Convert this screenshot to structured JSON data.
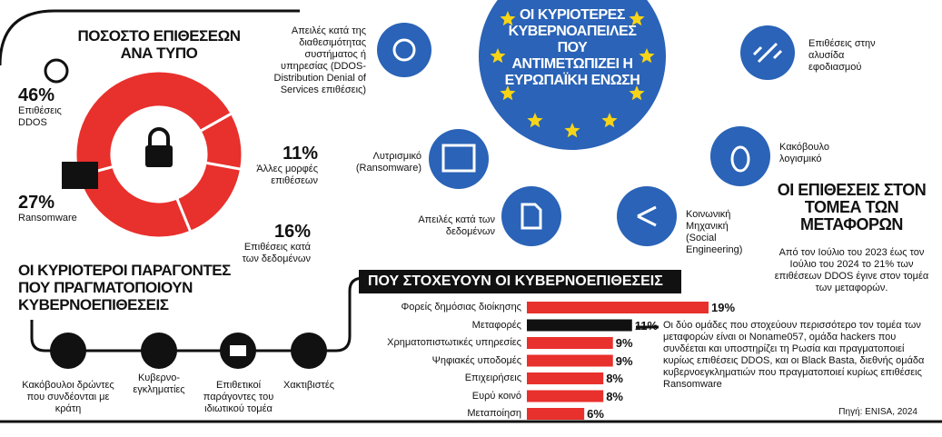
{
  "chart_data": [
    {
      "type": "donut",
      "title": "ΠΟΣΟΣΤΟ ΕΠΙΘΕΣΕΩΝ ΑΝΑ ΤΥΠΟ",
      "categories": [
        "Επιθέσεις DDOS",
        "Άλλες μορφές επιθέσεων",
        "Επιθέσεις κατά των δεδομένων",
        "Ransomware"
      ],
      "values": [
        46,
        11,
        16,
        27
      ],
      "value_labels": [
        "46%",
        "11%",
        "16%",
        "27%"
      ],
      "color": "#e8302c"
    },
    {
      "type": "hbar",
      "title": "ΠΟΥ ΣΤΟΧΕΥΟΥΝ ΟΙ ΚΥΒΕΡΝΟΕΠΙΘΕΣΕΙΣ",
      "categories": [
        "Φορείς δημόσιας διοίκησης",
        "Μεταφορές",
        "Χρηματοπιστωτικές υπηρεσίες",
        "Ψηφιακές υποδομές",
        "Επιχειρήσεις",
        "Ευρύ κοινό",
        "Μεταποίηση"
      ],
      "values": [
        19,
        11,
        9,
        9,
        8,
        8,
        6
      ],
      "value_labels": [
        "19%",
        "11%",
        "9%",
        "9%",
        "8%",
        "8%",
        "6%"
      ],
      "colors": [
        "#e8302c",
        "#111111",
        "#e8302c",
        "#e8302c",
        "#e8302c",
        "#e8302c",
        "#e8302c"
      ]
    }
  ],
  "hub": {
    "title": "ΟΙ ΚΥΡΙΟΤΕΡΕΣ ΚΥΒΕΡΝΟΑΠΕΙΛΕΣ ΠΟΥ ΑΝΤΙΜΕΤΩΠΙΖΕΙ Η ΕΥΡΩΠΑΪΚΗ ΕΝΩΣΗ",
    "threats": [
      "Απειλές κατά της διαθεσιμότητας συστήματος ή υπηρεσίας (DDOS-Distribution Denial of Services επιθέσεις)",
      "Επιθέσεις στην αλυσίδα εφοδιασμού",
      "Λυτρισμικό (Ransomware)",
      "Κακόβουλο λογισμικό",
      "Απειλές κατά των δεδομένων",
      "Κοινωνική Μηχανική (Social Engineering)"
    ]
  },
  "factors": {
    "title": "ΟΙ ΚΥΡΙΟΤΕΡΟΙ ΠΑΡΑΓΟΝΤΕΣ ΠΟΥ ΠΡΑΓΜΑΤΟΠΟΙΟΥΝ ΚΥΒΕΡΝΟΕΠΙΘΕΣΕΙΣ",
    "items": [
      "Κακόβουλοι δρώντες που συνδέονται με κράτη",
      "Κυβερνο-εγκληματίες",
      "Επιθετικοί παράγοντες του ιδιωτικού τομέα",
      "Χακτιβιστές"
    ]
  },
  "transport": {
    "title": "ΟΙ ΕΠΙΘΕΣΕΙΣ ΣΤΟΝ ΤΟΜΕΑ ΤΩΝ ΜΕΤΑΦΟΡΩΝ",
    "text": "Από τον Ιούλιο του 2023 έως τον Ιούλιο του 2024 το 21% των επιθέσεων DDOS έγινε στον τομέα των μεταφορών.",
    "groups": "Οι δύο ομάδες που στοχεύουν περισσότερο τον τομέα των μεταφορών είναι οι Noname057, ομάδα hackers που συνδέεται και υποστηρίζει τη Ρωσία και πραγματοποιεί κυρίως επιθέσεις DDOS, και οι Black Basta, διεθνής ομάδα κυβερνοεγκληματιών που πραγματοποιεί κυρίως επιθέσεις Ransomware",
    "source": "Πηγή: ENISA, 2024"
  }
}
